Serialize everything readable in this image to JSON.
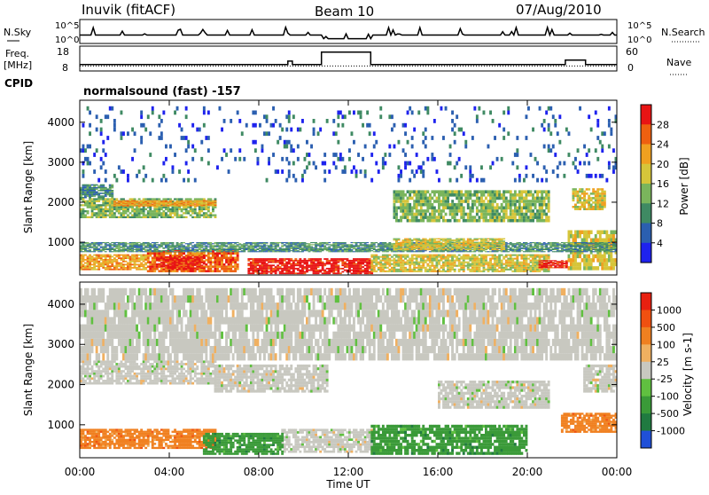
{
  "header": {
    "station": "Inuvik (fitACF)",
    "beam": "Beam 10",
    "date": "07/Aug/2010"
  },
  "chart_data": [
    {
      "type": "line",
      "panel": "noise",
      "left_label": "N.Sky",
      "right_label": "N.Search",
      "left_ticks": [
        "10^5",
        "10^0"
      ],
      "right_ticks": [
        "10^5",
        "10^0"
      ],
      "baseline_level": 0.35,
      "depressed_interval_hours": [
        10.9,
        13.0
      ],
      "depressed_level": 0.08
    },
    {
      "type": "line",
      "panel": "frequency",
      "left_label_line1": "Freq.",
      "left_label_line2": "[MHz]",
      "left_ticks": [
        18,
        8
      ],
      "right_label": "Nave",
      "right_ticks": [
        60,
        0
      ],
      "freq_steps": [
        {
          "t": [
            0,
            9.3
          ],
          "v": 10.5
        },
        {
          "t": [
            9.3,
            9.5
          ],
          "v": 12
        },
        {
          "t": [
            9.5,
            10.8
          ],
          "v": 10.5
        },
        {
          "t": [
            10.8,
            13.0
          ],
          "v": 16
        },
        {
          "t": [
            13.0,
            21.7
          ],
          "v": 10.5
        },
        {
          "t": [
            21.7,
            22.6
          ],
          "v": 12.5
        },
        {
          "t": [
            22.6,
            24
          ],
          "v": 10.5
        }
      ],
      "nave_level": 12,
      "cpid_label": "CPID",
      "cpid_text": "normalsound (fast) -157"
    },
    {
      "type": "heatmap",
      "panel": "power",
      "ylabel": "Slant Range [km]",
      "yticks": [
        1000,
        2000,
        3000,
        4000
      ],
      "ylim": [
        180,
        4550
      ],
      "colorbar_label": "Power [dB]",
      "colorbar_ticks": [
        4,
        8,
        12,
        16,
        20,
        24,
        28
      ],
      "colors": [
        "#1e22ee",
        "#2b5fb0",
        "#3f8a63",
        "#7ab55c",
        "#d6c53a",
        "#f0a020",
        "#ee6010",
        "#e81414"
      ],
      "regions": [
        {
          "t": [
            0,
            3
          ],
          "r": [
            300,
            700
          ],
          "level": 5
        },
        {
          "t": [
            3,
            7
          ],
          "r": [
            250,
            800
          ],
          "level": 6
        },
        {
          "t": [
            3.5,
            5.5
          ],
          "r": [
            300,
            650
          ],
          "level": 7
        },
        {
          "t": [
            7.5,
            13
          ],
          "r": [
            200,
            600
          ],
          "level": 7
        },
        {
          "t": [
            13,
            21
          ],
          "r": [
            250,
            700
          ],
          "level": 4
        },
        {
          "t": [
            20.5,
            21.8
          ],
          "r": [
            350,
            550
          ],
          "level": 7
        },
        {
          "t": [
            21.8,
            24
          ],
          "r": [
            300,
            1300
          ],
          "level": 4
        },
        {
          "t": [
            0,
            24
          ],
          "r": [
            750,
            1000
          ],
          "level": 2
        },
        {
          "t": [
            0,
            6
          ],
          "r": [
            1600,
            2100
          ],
          "level": 3
        },
        {
          "t": [
            0,
            1.5
          ],
          "r": [
            2100,
            2450
          ],
          "level": 2
        },
        {
          "t": [
            1.5,
            6
          ],
          "r": [
            1900,
            2050
          ],
          "level": 5
        },
        {
          "t": [
            14,
            21
          ],
          "r": [
            1500,
            2300
          ],
          "level": 3
        },
        {
          "t": [
            14,
            19
          ],
          "r": [
            800,
            1100
          ],
          "level": 4
        },
        {
          "t": [
            22,
            23.5
          ],
          "r": [
            1800,
            2350
          ],
          "level": 4
        },
        {
          "t": [
            0,
            24
          ],
          "r": [
            2500,
            4400
          ],
          "level": 1
        }
      ]
    },
    {
      "type": "heatmap",
      "panel": "velocity",
      "ylabel": "Slant Range [km]",
      "yticks": [
        1000,
        2000,
        3000,
        4000
      ],
      "ylim": [
        180,
        4550
      ],
      "xticks": [
        "00:00",
        "04:00",
        "08:00",
        "12:00",
        "16:00",
        "20:00",
        "00:00"
      ],
      "xlim_hours": [
        0,
        24
      ],
      "xlabel": "Time UT",
      "colorbar_label": "Velocity [m s-1]",
      "colorbar_ticks": [
        "1000",
        "500",
        "100",
        "25",
        "-25",
        "-100",
        "-500",
        "-1000"
      ],
      "colors": [
        "#2050d8",
        "#207a40",
        "#3a9a38",
        "#60c040",
        "#c8c8c0",
        "#f0b060",
        "#f08020",
        "#f05010",
        "#e82010"
      ],
      "regions": [
        {
          "t": [
            0,
            6
          ],
          "r": [
            2000,
            2600
          ],
          "level": 4
        },
        {
          "t": [
            6,
            11
          ],
          "r": [
            1800,
            2500
          ],
          "level": 4
        },
        {
          "t": [
            9,
            13
          ],
          "r": [
            300,
            900
          ],
          "level": 4
        },
        {
          "t": [
            0,
            6
          ],
          "r": [
            400,
            900
          ],
          "level": 6
        },
        {
          "t": [
            5.5,
            9
          ],
          "r": [
            250,
            800
          ],
          "level": 2
        },
        {
          "t": [
            13,
            20
          ],
          "r": [
            250,
            1000
          ],
          "level": 2
        },
        {
          "t": [
            16,
            21
          ],
          "r": [
            1400,
            2100
          ],
          "level": 4
        },
        {
          "t": [
            21.5,
            24
          ],
          "r": [
            800,
            1300
          ],
          "level": 6
        },
        {
          "t": [
            22.5,
            24
          ],
          "r": [
            1800,
            2500
          ],
          "level": 4
        },
        {
          "t": [
            0,
            24
          ],
          "r": [
            2600,
            4400
          ],
          "level": 4
        }
      ]
    }
  ]
}
